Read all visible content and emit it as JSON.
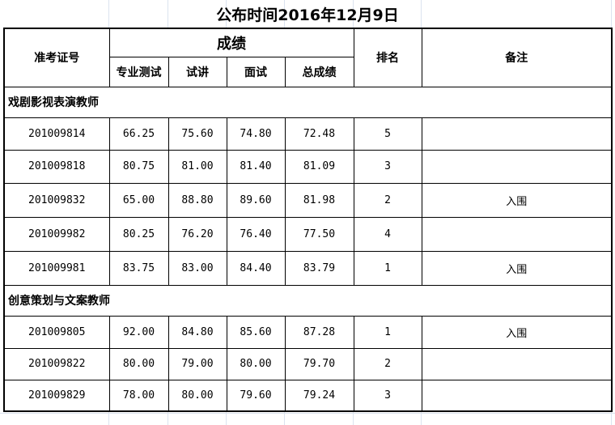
{
  "title": "公布时间2016年12月9日",
  "headers": {
    "id": "准考证号",
    "scores": "成绩",
    "professional": "专业测试",
    "lecture": "试讲",
    "interview": "面试",
    "total": "总成绩",
    "rank": "排名",
    "remark": "备注"
  },
  "groups": [
    {
      "name": "戏剧影视表演教师",
      "rows": [
        {
          "id": "201009814",
          "professional": "66.25",
          "lecture": "75.60",
          "interview": "74.80",
          "total": "72.48",
          "rank": "5",
          "remark": ""
        },
        {
          "id": "201009818",
          "professional": "80.75",
          "lecture": "81.00",
          "interview": "81.40",
          "total": "81.09",
          "rank": "3",
          "remark": ""
        },
        {
          "id": "201009832",
          "professional": "65.00",
          "lecture": "88.80",
          "interview": "89.60",
          "total": "81.98",
          "rank": "2",
          "remark": "入围"
        },
        {
          "id": "201009982",
          "professional": "80.25",
          "lecture": "76.20",
          "interview": "76.40",
          "total": "77.50",
          "rank": "4",
          "remark": ""
        },
        {
          "id": "201009981",
          "professional": "83.75",
          "lecture": "83.00",
          "interview": "84.40",
          "total": "83.79",
          "rank": "1",
          "remark": "入围"
        }
      ]
    },
    {
      "name": "创意策划与文案教师",
      "rows": [
        {
          "id": "201009805",
          "professional": "92.00",
          "lecture": "84.80",
          "interview": "85.60",
          "total": "87.28",
          "rank": "1",
          "remark": "入围"
        },
        {
          "id": "201009822",
          "professional": "80.00",
          "lecture": "79.00",
          "interview": "80.00",
          "total": "79.70",
          "rank": "2",
          "remark": ""
        },
        {
          "id": "201009829",
          "professional": "78.00",
          "lecture": "80.00",
          "interview": "79.60",
          "total": "79.24",
          "rank": "3",
          "remark": ""
        }
      ]
    }
  ]
}
